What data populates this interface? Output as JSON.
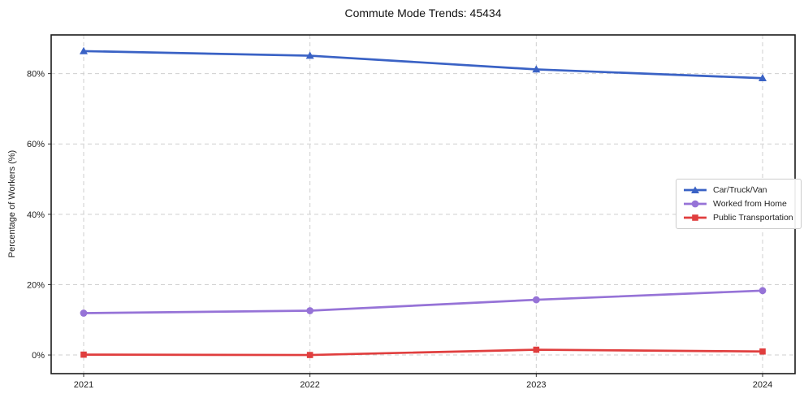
{
  "figure": {
    "title": "Commute Mode Trends: 45434",
    "background_color": "#ffffff",
    "frame_color": "#1a1a1a",
    "grid_color": "#cfcfcf",
    "text_color": "#222222"
  },
  "chart_data": {
    "type": "line",
    "title": "Commute Mode Trends: 45434",
    "xlabel": "",
    "ylabel": "Percentage of Workers (%)",
    "x": [
      2021,
      2022,
      2023,
      2024
    ],
    "x_tick_labels": [
      "2021",
      "2022",
      "2023",
      "2024"
    ],
    "y_ticks": [
      0,
      20,
      40,
      60,
      80
    ],
    "y_tick_labels": [
      "0%",
      "20%",
      "40%",
      "60%",
      "80%"
    ],
    "ylim": [
      -5.3,
      91.0
    ],
    "grid": true,
    "grid_style": "dashed",
    "legend_position": "center-right",
    "series": [
      {
        "name": "Car/Truck/Van",
        "color": "#3a62c5",
        "marker": "triangle",
        "values": [
          86.4,
          85.1,
          81.2,
          78.7
        ]
      },
      {
        "name": "Worked from Home",
        "color": "#9673d7",
        "marker": "circle",
        "values": [
          11.9,
          12.6,
          15.7,
          18.3
        ]
      },
      {
        "name": "Public Transportation",
        "color": "#e03e3e",
        "marker": "square",
        "values": [
          0.1,
          0.0,
          1.5,
          1.0
        ]
      }
    ]
  }
}
